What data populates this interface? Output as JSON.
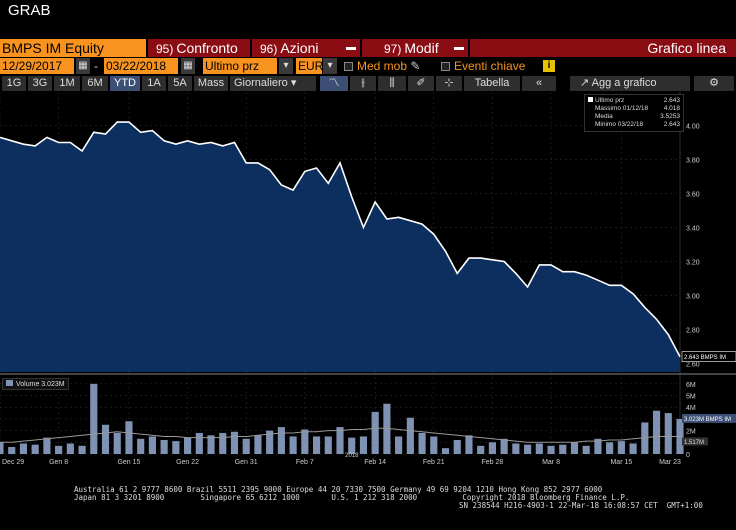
{
  "window": {
    "title": "GRAB"
  },
  "toolbar": {
    "ticker": "BMPS IM Equity",
    "tabs": [
      {
        "num": "95)",
        "label": "Confronto"
      },
      {
        "num": "96)",
        "label": "Azioni"
      },
      {
        "num": "97)",
        "label": "Modif"
      }
    ],
    "chart_type_label": "Grafico linea"
  },
  "controls": {
    "start_date": "12/29/2017",
    "end_date": "03/22/2018",
    "date_sep": "-",
    "field": "Ultimo prz",
    "currency": "EUR",
    "moving_avg_label": "Med mob",
    "key_events_label": "Eventi chiave",
    "info_glyph": "i"
  },
  "periods": [
    "1G",
    "3G",
    "1M",
    "6M",
    "YTD",
    "1A",
    "5A",
    "Mass"
  ],
  "active_period": "YTD",
  "frequency": "Giornaliero",
  "table_label": "Tabella",
  "add_chart_label": "Agg a grafico",
  "legend": {
    "rows": [
      {
        "label": "Ultimo prz",
        "value": "2.643"
      },
      {
        "label": "Massimo 01/12/18",
        "value": "4.018"
      },
      {
        "label": "Media",
        "value": "3.5253"
      },
      {
        "label": "Minimo 03/22/18",
        "value": "2.643"
      }
    ]
  },
  "last_price_tag": "2.643 BMPS IM",
  "volume_legend": "Volume 3.023M",
  "volume_tag": "3.023M BMPS IM",
  "volume_avg_tag": "1.517M",
  "chart_data": {
    "type": "line",
    "price_axis": {
      "ticks": [
        "4.00",
        "3.80",
        "3.60",
        "3.40",
        "3.20",
        "3.00",
        "2.80",
        "2.60"
      ],
      "ylim": [
        2.55,
        4.15
      ]
    },
    "volume_axis": {
      "ticks": [
        "6M",
        "5M",
        "4M",
        "3M",
        "2M",
        "1M",
        "0"
      ],
      "ylim": [
        0,
        6.5
      ]
    },
    "x_ticks": [
      "Dec 29",
      "Gen 8",
      "Gen 15",
      "Gen 22",
      "Gen 31",
      "Feb 7",
      "Feb 14",
      "Feb 21",
      "Feb 28",
      "Mar 8",
      "Mar 15",
      "Mar 23"
    ],
    "year_label": "2018",
    "price": [
      3.93,
      3.91,
      3.89,
      3.88,
      3.93,
      3.9,
      3.9,
      3.85,
      3.96,
      3.95,
      4.02,
      4.02,
      3.96,
      3.97,
      3.91,
      3.89,
      3.91,
      3.89,
      3.9,
      3.88,
      3.9,
      3.78,
      3.78,
      3.74,
      3.65,
      3.62,
      3.73,
      3.75,
      3.66,
      3.78,
      3.58,
      3.4,
      3.55,
      3.45,
      3.46,
      3.44,
      3.42,
      3.36,
      3.26,
      3.13,
      3.22,
      3.22,
      3.21,
      3.2,
      3.13,
      3.05,
      3.18,
      3.18,
      3.14,
      3.14,
      3.12,
      3.09,
      3.06,
      3.06,
      3.01,
      2.93,
      2.86,
      2.77,
      2.64
    ],
    "volume": [
      1.0,
      0.6,
      0.9,
      0.8,
      1.4,
      0.7,
      0.9,
      0.7,
      6.0,
      2.5,
      1.8,
      2.8,
      1.3,
      1.5,
      1.2,
      1.1,
      1.4,
      1.8,
      1.6,
      1.8,
      1.9,
      1.3,
      1.6,
      2.0,
      2.3,
      1.5,
      2.1,
      1.5,
      1.5,
      2.3,
      1.4,
      1.5,
      3.6,
      4.3,
      1.5,
      3.1,
      1.8,
      1.5,
      0.5,
      1.2,
      1.6,
      0.7,
      1.0,
      1.3,
      0.9,
      0.8,
      0.9,
      0.7,
      0.8,
      1.0,
      0.7,
      1.3,
      1.0,
      1.1,
      0.9,
      2.7,
      3.7,
      3.5,
      3.0
    ],
    "volume_avg": [
      1.0,
      1.0,
      1.1,
      1.2,
      1.3,
      1.4,
      1.5,
      1.6,
      1.7,
      1.8,
      1.9,
      1.8,
      1.7,
      1.6,
      1.5,
      1.5,
      1.4,
      1.4,
      1.4,
      1.4,
      1.5,
      1.5,
      1.6,
      1.7,
      1.8,
      1.8,
      1.9,
      1.9,
      2.0,
      2.0,
      2.1,
      2.1,
      2.2,
      2.2,
      2.1,
      2.0,
      1.9,
      1.8,
      1.7,
      1.6,
      1.5,
      1.4,
      1.3,
      1.2,
      1.1,
      1.0,
      1.0,
      1.0,
      1.0,
      1.0,
      1.1,
      1.1,
      1.2,
      1.2,
      1.3,
      1.4,
      1.5,
      1.5,
      1.5
    ],
    "colors": {
      "area": "#0d2f60",
      "line": "#ffffff",
      "bars": "#7f92b3",
      "grid": "#333333"
    }
  },
  "footer": {
    "line1": "Australia 61 2 9777 8600 Brazil 5511 2395 9000 Europe 44 20 7330 7500 Germany 49 69 9204 1210 Hong Kong 852 2977 6000",
    "line2": "Japan 81 3 3201 8900        Singapore 65 6212 1000       U.S. 1 212 318 2000          Copyright 2018 Bloomberg Finance L.P.",
    "line3": "SN 238544 H216-4903-1 22-Mar-18 16:08:57 CET  GMT+1:00"
  }
}
